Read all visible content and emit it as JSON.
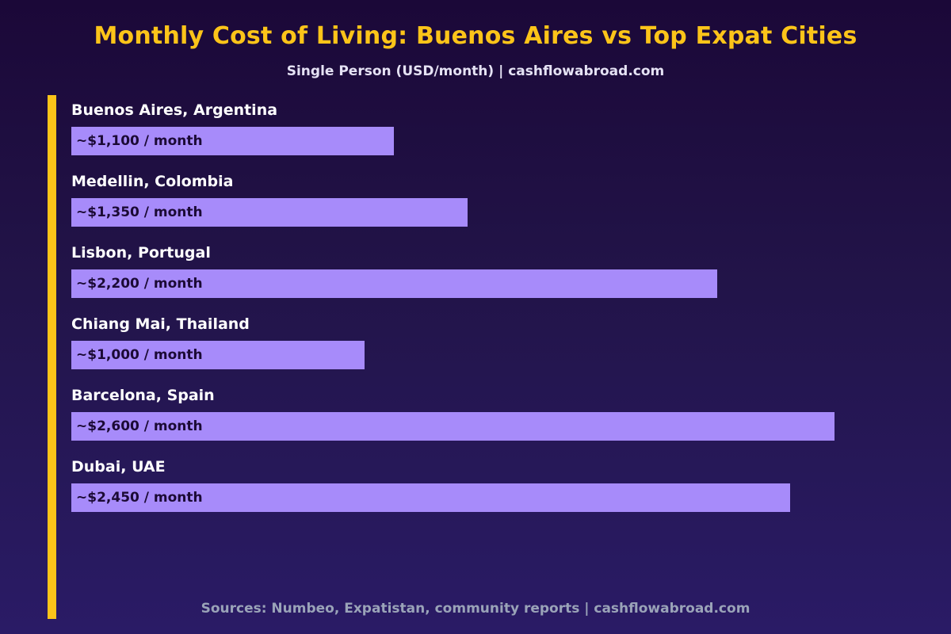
{
  "title": "Monthly Cost of Living: Buenos Aires vs Top Expat Cities",
  "subtitle": "Single Person (USD/month) | cashflowabroad.com",
  "source": "Sources: Numbeo, Expatistan, community reports | cashflowabroad.com",
  "colors": {
    "title": "#fcc419",
    "accent_bar": "#fcc419",
    "bar": "#a78bfa",
    "bar_text": "#1b0a35",
    "background_top": "#1b0838",
    "background_bottom": "#2a1b66"
  },
  "chart_data": {
    "type": "bar",
    "orientation": "horizontal",
    "title": "Monthly Cost of Living: Buenos Aires vs Top Expat Cities",
    "subtitle": "Single Person (USD/month) | cashflowabroad.com",
    "xlabel": "",
    "ylabel": "",
    "grid": false,
    "xlim": [
      0,
      2916
    ],
    "categories": [
      "Buenos Aires, Argentina",
      "Medellin, Colombia",
      "Lisbon, Portugal",
      "Chiang Mai, Thailand",
      "Barcelona, Spain",
      "Dubai, UAE"
    ],
    "values": [
      1100,
      1350,
      2200,
      1000,
      2600,
      2450
    ],
    "value_labels": [
      "~$1,100 / month",
      "~$1,350 / month",
      "~$2,200 / month",
      "~$1,000 / month",
      "~$2,600 / month",
      "~$2,450 / month"
    ]
  }
}
